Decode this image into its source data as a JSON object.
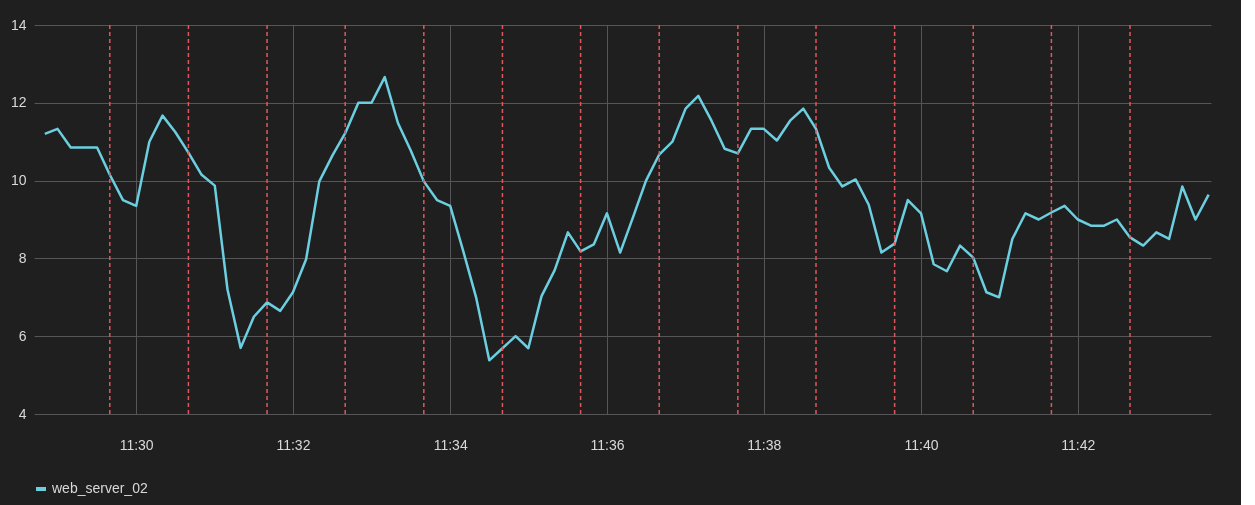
{
  "chart_data": {
    "type": "line",
    "x": [
      11.4806,
      11.4833,
      11.4861,
      11.4889,
      11.4917,
      11.4944,
      11.4972,
      11.5,
      11.5028,
      11.5056,
      11.5083,
      11.5111,
      11.5139,
      11.5167,
      11.5194,
      11.5222,
      11.525,
      11.5278,
      11.5306,
      11.5333,
      11.5361,
      11.5389,
      11.5417,
      11.5444,
      11.5472,
      11.55,
      11.5528,
      11.5556,
      11.5583,
      11.5611,
      11.5639,
      11.5667,
      11.5694,
      11.5722,
      11.575,
      11.5778,
      11.5806,
      11.5833,
      11.5861,
      11.5889,
      11.5917,
      11.5944,
      11.5972,
      11.6,
      11.6028,
      11.6056,
      11.6083,
      11.6111,
      11.6139,
      11.6167,
      11.6194,
      11.6222,
      11.625,
      11.6278,
      11.6306,
      11.6333,
      11.6361,
      11.6389,
      11.6417,
      11.6444,
      11.6472,
      11.65,
      11.6528,
      11.6556,
      11.6583,
      11.6611,
      11.6639,
      11.6667,
      11.6694,
      11.6722,
      11.675,
      11.6778,
      11.6806,
      11.6833,
      11.6861,
      11.6889,
      11.6917,
      11.6944,
      11.6972,
      11.7,
      11.7028,
      11.7056,
      11.7083,
      11.7111,
      11.7139,
      11.7167,
      11.7194,
      11.7222,
      11.725,
      11.7278
    ],
    "series": [
      {
        "name": "web_server_02",
        "color": "#6ccfe0",
        "values": [
          11.2,
          11.33,
          10.85,
          10.85,
          10.85,
          10.15,
          9.5,
          9.35,
          11.0,
          11.67,
          11.25,
          10.72,
          10.15,
          9.87,
          7.2,
          5.7,
          6.5,
          6.87,
          6.65,
          7.13,
          7.98,
          9.98,
          10.65,
          11.22,
          12.0,
          12.0,
          12.66,
          11.48,
          10.78,
          9.98,
          9.5,
          9.35,
          8.22,
          7.0,
          5.38,
          5.69,
          6.0,
          5.69,
          7.03,
          7.7,
          8.67,
          8.18,
          8.36,
          9.16,
          8.15,
          9.08,
          10.0,
          10.67,
          11.0,
          11.85,
          12.18,
          11.54,
          10.82,
          10.7,
          11.33,
          11.33,
          11.03,
          11.54,
          11.85,
          11.33,
          10.33,
          9.85,
          10.03,
          9.38,
          8.15,
          8.38,
          9.5,
          9.16,
          7.85,
          7.67,
          8.33,
          8.02,
          7.13,
          7.0,
          8.5,
          9.16,
          9.0,
          9.18,
          9.35,
          9.0,
          8.84,
          8.84,
          9.0,
          8.54,
          8.33,
          8.67,
          8.5,
          9.85,
          9.0,
          9.64
        ]
      }
    ],
    "xlim": [
      11.4783,
      11.7283
    ],
    "xticks": [
      {
        "value": 11.5,
        "label": "11:30"
      },
      {
        "value": 11.5333,
        "label": "11:32"
      },
      {
        "value": 11.5667,
        "label": "11:34"
      },
      {
        "value": 11.6,
        "label": "11:36"
      },
      {
        "value": 11.6333,
        "label": "11:38"
      },
      {
        "value": 11.6667,
        "label": "11:40"
      },
      {
        "value": 11.7,
        "label": "11:42"
      }
    ],
    "ylim": [
      4,
      14
    ],
    "yticks": [
      4,
      6,
      8,
      10,
      12,
      14
    ],
    "grid": true,
    "legend": "bottom",
    "line_style": "solid",
    "ref_lines": [
      {
        "axis": "x",
        "value": 11.4944,
        "color": "#e0575b",
        "line_style": "dashed"
      },
      {
        "axis": "x",
        "value": 11.5111,
        "color": "#e0575b",
        "line_style": "dashed"
      },
      {
        "axis": "x",
        "value": 11.5278,
        "color": "#e0575b",
        "line_style": "dashed"
      },
      {
        "axis": "x",
        "value": 11.5444,
        "color": "#e0575b",
        "line_style": "dashed"
      },
      {
        "axis": "x",
        "value": 11.5611,
        "color": "#e0575b",
        "line_style": "dashed"
      },
      {
        "axis": "x",
        "value": 11.5778,
        "color": "#e0575b",
        "line_style": "dashed"
      },
      {
        "axis": "x",
        "value": 11.5944,
        "color": "#e0575b",
        "line_style": "dashed"
      },
      {
        "axis": "x",
        "value": 11.6111,
        "color": "#e0575b",
        "line_style": "dashed"
      },
      {
        "axis": "x",
        "value": 11.6278,
        "color": "#e0575b",
        "line_style": "dashed"
      },
      {
        "axis": "x",
        "value": 11.6444,
        "color": "#e0575b",
        "line_style": "dashed"
      },
      {
        "axis": "x",
        "value": 11.6611,
        "color": "#e0575b",
        "line_style": "dashed"
      },
      {
        "axis": "x",
        "value": 11.6778,
        "color": "#e0575b",
        "line_style": "dashed"
      },
      {
        "axis": "x",
        "value": 11.6944,
        "color": "#e0575b",
        "line_style": "dashed"
      },
      {
        "axis": "x",
        "value": 11.7111,
        "color": "#e0575b",
        "line_style": "dashed"
      }
    ]
  }
}
